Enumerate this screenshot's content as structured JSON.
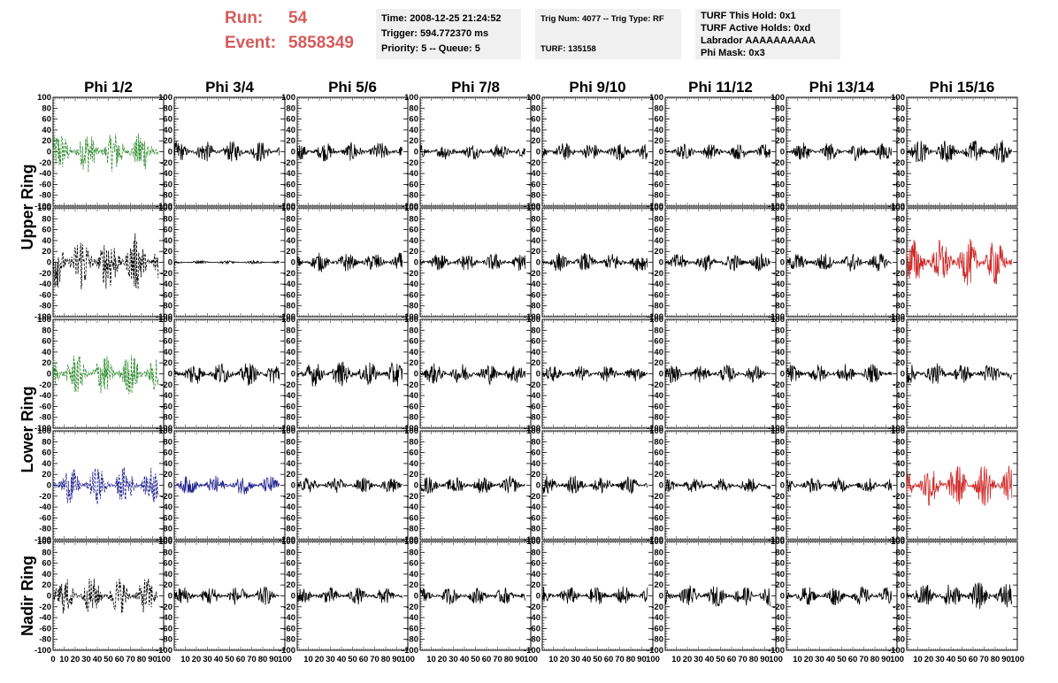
{
  "header": {
    "run_label": "Run:",
    "run_value": "54",
    "event_label": "Event:",
    "event_value": "5858349",
    "box1": [
      "Time: 2008-12-25 21:24:52",
      "Trigger: 594.772370 ms",
      "Priority: 5 -- Queue: 5"
    ],
    "box2": [
      "Trig Num: 4077 -- Trig Type: RF",
      "",
      "TURF: 135158"
    ],
    "box3": [
      "TURF This Hold: 0x1",
      "TURF Active Holds: 0xd",
      "Labrador AAAAAAAAAA",
      "Phi Mask: 0x3"
    ]
  },
  "chart_data": {
    "type": "line",
    "columns": [
      "Phi 1/2",
      "Phi 3/4",
      "Phi 5/6",
      "Phi 7/8",
      "Phi 9/10",
      "Phi 11/12",
      "Phi 13/14",
      "Phi 15/16"
    ],
    "row_groups": [
      {
        "label": "Upper Ring",
        "rows": [
          0,
          1
        ]
      },
      {
        "label": "Lower Ring",
        "rows": [
          2,
          3
        ]
      },
      {
        "label": "Nadir Ring",
        "rows": [
          4
        ]
      }
    ],
    "xlim": [
      0,
      100
    ],
    "ylim": [
      -100,
      100
    ],
    "yticks": [
      -100,
      -80,
      -60,
      -40,
      -20,
      0,
      20,
      40,
      60,
      80,
      100
    ],
    "xticks": [
      0,
      10,
      20,
      30,
      40,
      50,
      60,
      70,
      80,
      90,
      100
    ],
    "colors": {
      "black": "#000000",
      "green": "#2e8b2e",
      "blue": "#22228f",
      "red": "#d02828"
    },
    "trace_x_range": [
      0,
      95
    ],
    "panels": [
      [
        {
          "color": "green",
          "dashed": true,
          "amplitude": 40
        },
        {
          "color": "black",
          "dashed": false,
          "amplitude": 20
        },
        {
          "color": "black",
          "dashed": false,
          "amplitude": 18
        },
        {
          "color": "black",
          "dashed": false,
          "amplitude": 15
        },
        {
          "color": "black",
          "dashed": false,
          "amplitude": 17
        },
        {
          "color": "black",
          "dashed": false,
          "amplitude": 15
        },
        {
          "color": "black",
          "dashed": false,
          "amplitude": 17
        },
        {
          "color": "black",
          "dashed": false,
          "amplitude": 22
        }
      ],
      [
        {
          "color": "black",
          "dashed": true,
          "amplitude": 55
        },
        {
          "color": "black",
          "dashed": false,
          "amplitude": 3
        },
        {
          "color": "black",
          "dashed": false,
          "amplitude": 18
        },
        {
          "color": "black",
          "dashed": false,
          "amplitude": 17
        },
        {
          "color": "black",
          "dashed": false,
          "amplitude": 18
        },
        {
          "color": "black",
          "dashed": false,
          "amplitude": 17
        },
        {
          "color": "black",
          "dashed": false,
          "amplitude": 18
        },
        {
          "color": "red",
          "dashed": false,
          "amplitude": 45
        }
      ],
      [
        {
          "color": "green",
          "dashed": true,
          "amplitude": 40
        },
        {
          "color": "black",
          "dashed": false,
          "amplitude": 22
        },
        {
          "color": "black",
          "dashed": false,
          "amplitude": 24
        },
        {
          "color": "black",
          "dashed": false,
          "amplitude": 20
        },
        {
          "color": "black",
          "dashed": false,
          "amplitude": 15
        },
        {
          "color": "black",
          "dashed": false,
          "amplitude": 17
        },
        {
          "color": "black",
          "dashed": false,
          "amplitude": 18
        },
        {
          "color": "black",
          "dashed": false,
          "amplitude": 20
        }
      ],
      [
        {
          "color": "blue",
          "dashed": true,
          "amplitude": 35
        },
        {
          "color": "blue",
          "dashed": false,
          "amplitude": 18
        },
        {
          "color": "black",
          "dashed": false,
          "amplitude": 15
        },
        {
          "color": "black",
          "dashed": false,
          "amplitude": 17
        },
        {
          "color": "black",
          "dashed": false,
          "amplitude": 18
        },
        {
          "color": "black",
          "dashed": false,
          "amplitude": 15
        },
        {
          "color": "black",
          "dashed": false,
          "amplitude": 15
        },
        {
          "color": "red",
          "dashed": false,
          "amplitude": 40
        }
      ],
      [
        {
          "color": "black",
          "dashed": true,
          "amplitude": 35
        },
        {
          "color": "black",
          "dashed": false,
          "amplitude": 18
        },
        {
          "color": "black",
          "dashed": false,
          "amplitude": 16
        },
        {
          "color": "black",
          "dashed": false,
          "amplitude": 16
        },
        {
          "color": "black",
          "dashed": false,
          "amplitude": 18
        },
        {
          "color": "black",
          "dashed": false,
          "amplitude": 20
        },
        {
          "color": "black",
          "dashed": false,
          "amplitude": 18
        },
        {
          "color": "black",
          "dashed": false,
          "amplitude": 25
        }
      ]
    ]
  }
}
